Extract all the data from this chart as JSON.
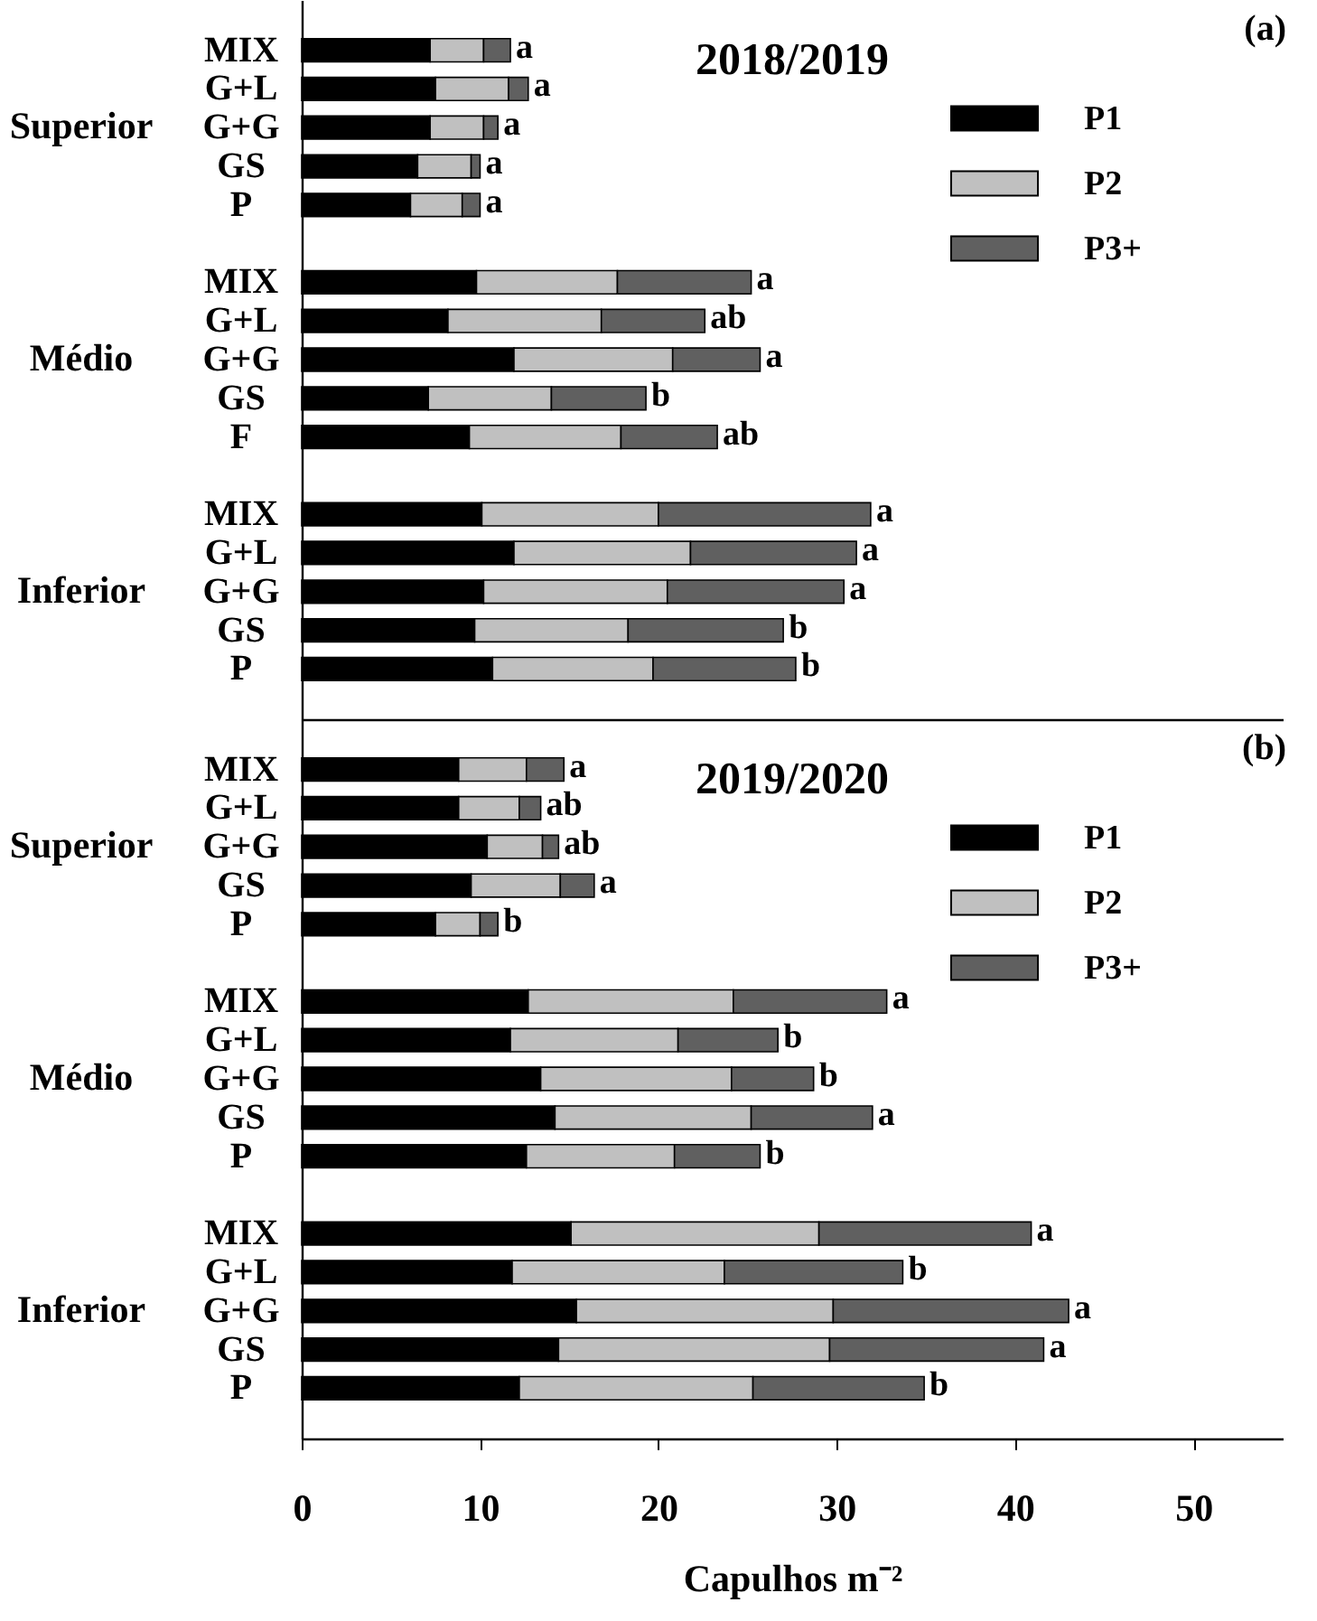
{
  "chart_data": [
    {
      "type": "bar",
      "orientation": "horizontal",
      "stacked": true,
      "title": "2018/2019",
      "annotations": [
        "(a)",
        "Superior",
        "Médio",
        "Inferior"
      ],
      "legend": "top right",
      "tick_labels": "y",
      "xlim": [
        0,
        55
      ],
      "xticks": [
        0,
        10,
        20,
        30,
        40,
        50
      ],
      "categories": [
        "MIX",
        "G+L",
        "G+G",
        "GS",
        "P",
        null,
        "MIX",
        "G+L",
        "G+G",
        "GS",
        "F",
        null,
        "MIX",
        "G+L",
        "G+G",
        "GS",
        "P"
      ],
      "series": [
        {
          "name": "P1",
          "color": "#000000",
          "values": [
            7.2,
            7.5,
            7.2,
            6.5,
            6.1,
            null,
            9.8,
            8.2,
            11.9,
            7.1,
            9.4,
            null,
            10.1,
            11.9,
            10.2,
            9.7,
            10.7
          ]
        },
        {
          "name": "P2",
          "color": "#c0c0c0",
          "values": [
            3.0,
            4.1,
            3.0,
            3.0,
            2.9,
            null,
            7.9,
            8.6,
            8.9,
            6.9,
            8.5,
            null,
            9.9,
            9.9,
            10.3,
            8.6,
            9.0
          ]
        },
        {
          "name": "P3+",
          "color": "#606060",
          "values": [
            1.5,
            1.1,
            0.8,
            0.5,
            1.0,
            null,
            7.5,
            5.8,
            4.9,
            5.3,
            5.4,
            null,
            11.9,
            9.3,
            9.9,
            8.7,
            8.0
          ]
        }
      ],
      "totals": [
        "a",
        "a",
        "a",
        "a",
        "a",
        null,
        "a",
        "ab",
        "a",
        "b",
        "ab",
        null,
        "a",
        "a",
        "a",
        "b",
        "b"
      ]
    },
    {
      "type": "bar",
      "orientation": "horizontal",
      "stacked": true,
      "title": "2019/2020",
      "annotations": [
        "(b)",
        "Superior",
        "Médio",
        "Inferior"
      ],
      "legend": "top right",
      "xlabel": "Capulhos m⁻²",
      "xlim": [
        0,
        55
      ],
      "xticks": [
        0,
        10,
        20,
        30,
        40,
        50
      ],
      "categories": [
        "MIX",
        "G+L",
        "G+G",
        "GS",
        "P",
        null,
        "MIX",
        "G+L",
        "G+G",
        "GS",
        "P",
        null,
        "MIX",
        "G+L",
        "G+G",
        "GS",
        "P"
      ],
      "series": [
        {
          "name": "P1",
          "color": "#000000",
          "values": [
            8.8,
            8.8,
            10.4,
            9.5,
            7.5,
            null,
            12.7,
            11.7,
            13.4,
            14.2,
            12.6,
            null,
            15.1,
            11.8,
            15.4,
            14.4,
            12.2
          ]
        },
        {
          "name": "P2",
          "color": "#c0c0c0",
          "values": [
            3.8,
            3.4,
            3.1,
            5.0,
            2.5,
            null,
            11.5,
            9.4,
            10.7,
            11.0,
            8.3,
            null,
            13.9,
            11.9,
            14.4,
            15.2,
            13.1
          ]
        },
        {
          "name": "P3+",
          "color": "#606060",
          "values": [
            2.1,
            1.2,
            0.9,
            1.9,
            1.0,
            null,
            8.6,
            5.6,
            4.6,
            6.8,
            4.8,
            null,
            11.9,
            10.0,
            13.2,
            12.0,
            9.6
          ]
        }
      ],
      "totals": [
        "a",
        "ab",
        "ab",
        "a",
        "b",
        null,
        "a",
        "b",
        "b",
        "a",
        "b",
        null,
        "a",
        "b",
        "a",
        "a",
        "b"
      ]
    }
  ]
}
